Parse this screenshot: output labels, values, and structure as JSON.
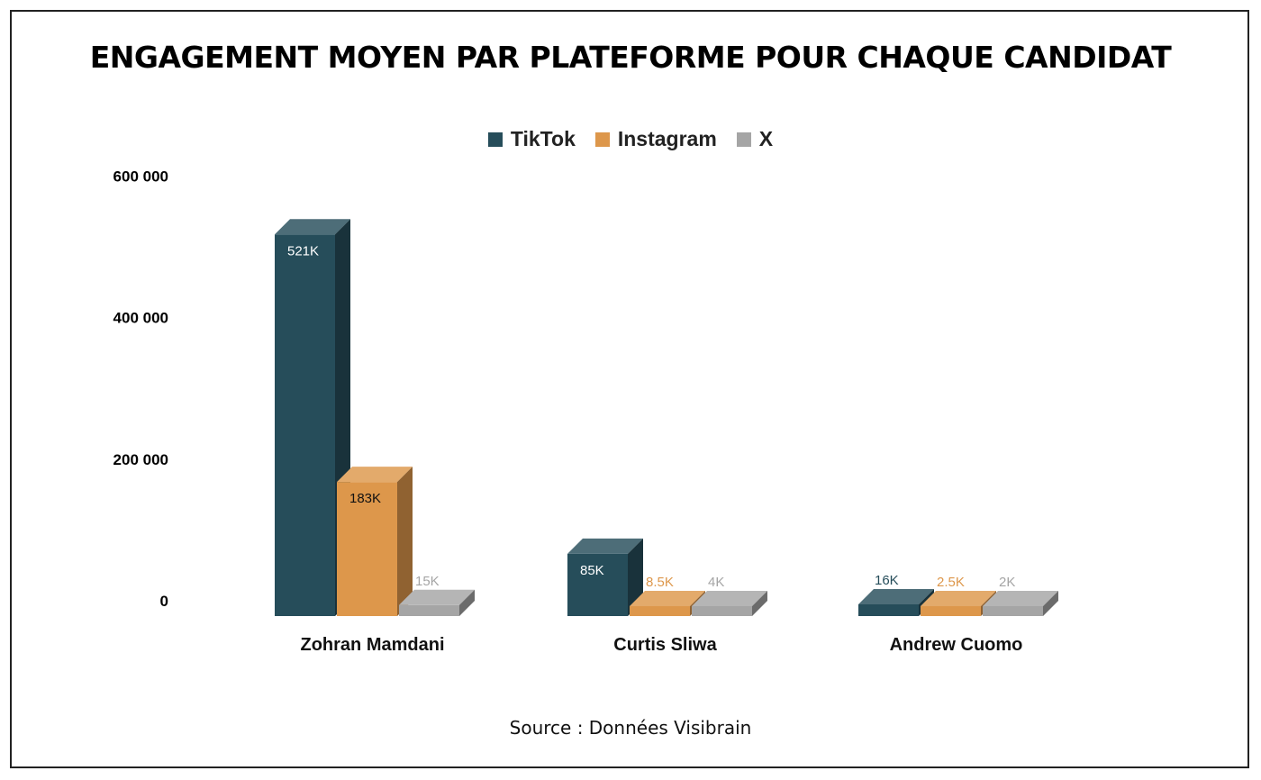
{
  "chart_data": {
    "type": "bar",
    "title": "ENGAGEMENT MOYEN PAR PLATEFORME POUR CHAQUE CANDIDAT",
    "source": "Source : Données Visibrain",
    "categories": [
      "Zohran Mamdani",
      "Curtis Sliwa",
      "Andrew Cuomo"
    ],
    "series": [
      {
        "name": "TikTok",
        "color": "#264d5a",
        "values": [
          521000,
          85000,
          16000
        ],
        "labels": [
          "521K",
          "85K",
          "16K"
        ]
      },
      {
        "name": "Instagram",
        "color": "#dd974b",
        "values": [
          183000,
          8500,
          2500
        ],
        "labels": [
          "183K",
          "8.5K",
          "2.5K"
        ]
      },
      {
        "name": "X",
        "color": "#a5a5a5",
        "values": [
          15000,
          4000,
          2000
        ],
        "labels": [
          "15K",
          "4K",
          "2K"
        ]
      }
    ],
    "yticks": [
      "0",
      "200 000",
      "400 000",
      "600 000"
    ],
    "ytick_values": [
      0,
      200000,
      400000,
      600000
    ],
    "ylim": [
      0,
      600000
    ],
    "grid": false,
    "legend_position": "top-center",
    "style": "3d-column"
  }
}
